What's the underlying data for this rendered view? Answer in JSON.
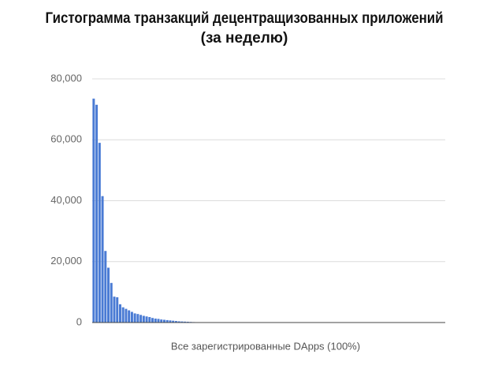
{
  "chart_data": {
    "type": "bar",
    "title": [
      "Гистограмма транзакций децентращизованных приложений",
      "(за неделю)"
    ],
    "x_label": "Все зарегистрированные DApps (100%)",
    "categories": [
      null,
      null,
      null,
      null,
      null,
      null,
      null,
      null,
      null,
      null,
      null,
      null,
      null,
      null,
      null,
      null,
      null,
      null,
      null,
      null,
      null,
      null,
      null,
      null,
      null,
      null,
      null,
      null,
      null,
      null,
      null,
      null,
      null,
      null,
      null,
      null,
      null,
      null,
      null,
      null,
      null,
      null,
      null,
      null,
      null,
      null,
      null,
      null,
      null,
      null,
      null,
      null,
      null,
      null,
      null,
      null,
      null,
      null,
      null,
      null,
      null,
      null,
      null,
      null,
      null,
      null,
      null,
      null,
      null,
      null,
      null,
      null,
      null,
      null,
      null,
      null,
      null,
      null,
      null,
      null,
      null,
      null,
      null,
      null,
      null,
      null,
      null,
      null,
      null,
      null,
      null,
      null,
      null,
      null,
      null,
      null,
      null,
      null,
      null,
      null,
      null,
      null,
      null,
      null,
      null,
      null,
      null,
      null,
      null,
      null,
      null,
      null,
      null,
      null,
      null,
      null,
      null,
      null,
      null,
      null
    ],
    "values": [
      73500,
      71500,
      59000,
      41500,
      23500,
      18000,
      13000,
      8500,
      8300,
      6000,
      5000,
      4500,
      4000,
      3500,
      3000,
      2800,
      2500,
      2200,
      2000,
      1800,
      1500,
      1300,
      1200,
      1000,
      900,
      800,
      700,
      600,
      500,
      400,
      350,
      300,
      250,
      200,
      150,
      100,
      0,
      0,
      0,
      0,
      0,
      0,
      0,
      0,
      0,
      0,
      0,
      0,
      0,
      0,
      0,
      0,
      0,
      0,
      0,
      0,
      0,
      0,
      0,
      0,
      0,
      0,
      0,
      0,
      0,
      0,
      0,
      0,
      0,
      0,
      0,
      0,
      0,
      0,
      0,
      0,
      0,
      0,
      0,
      0,
      0,
      0,
      0,
      0,
      0,
      0,
      0,
      0,
      0,
      0,
      0,
      0,
      0,
      0,
      0,
      0,
      0,
      0,
      0,
      0,
      0,
      0,
      0,
      0,
      0,
      0,
      0,
      0,
      0,
      0,
      0,
      0,
      0,
      0,
      0,
      0,
      0,
      0,
      0,
      0
    ],
    "color": "#4a7bd4",
    "ylim": [
      0,
      80000
    ],
    "yticks": [
      0,
      {
        "value": 20000,
        "label": "20,000"
      },
      {
        "value": 40000,
        "label": "40,000"
      },
      {
        "value": 60000,
        "label": "60,000"
      },
      {
        "value": 80000,
        "label": "80,000"
      }
    ],
    "grid": true
  }
}
